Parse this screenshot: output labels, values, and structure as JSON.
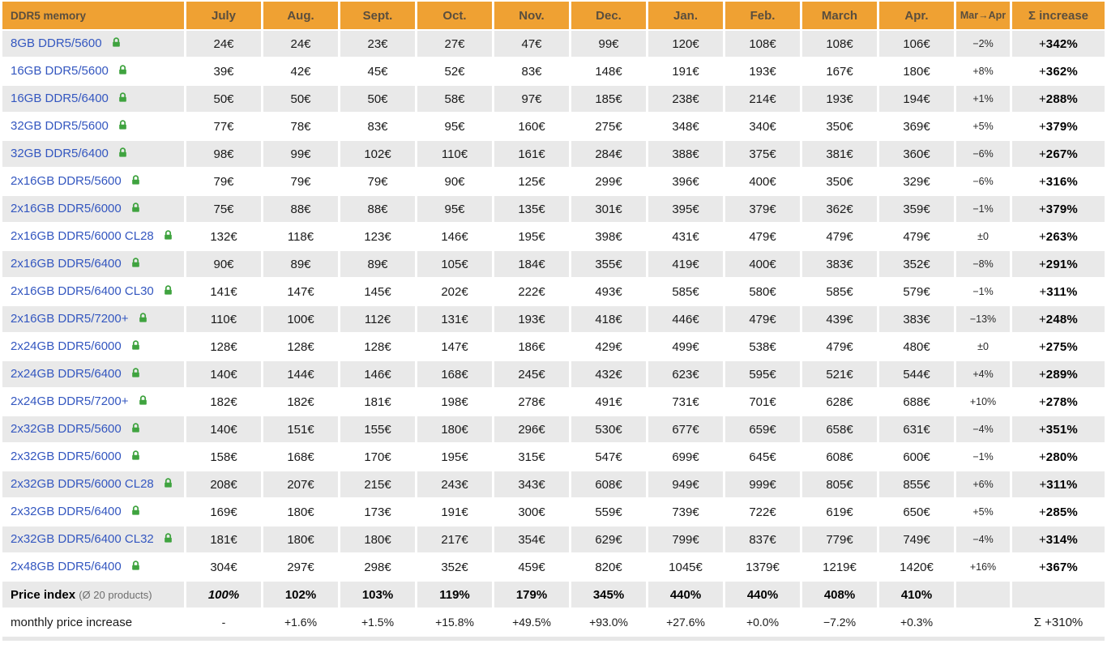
{
  "colors": {
    "header_bg": "#efa133",
    "header_text": "#5a4e3e",
    "row_alt_bg": "#e9e9e9",
    "link_blue": "#3457c0",
    "lock_green": "#3fa33f"
  },
  "table": {
    "title": "DDR5 memory",
    "months": [
      "July",
      "Aug.",
      "Sept.",
      "Oct.",
      "Nov.",
      "Dec.",
      "Jan.",
      "Feb.",
      "March",
      "Apr."
    ],
    "change_header": "Mar→Apr",
    "sum_header": "Σ increase",
    "rows": [
      {
        "name": "8GB DDR5/5600",
        "prices": [
          "24€",
          "24€",
          "23€",
          "27€",
          "47€",
          "99€",
          "120€",
          "108€",
          "108€",
          "106€"
        ],
        "change": "−2%",
        "sum_sign": "+",
        "sum_val": "342%"
      },
      {
        "name": "16GB DDR5/5600",
        "prices": [
          "39€",
          "42€",
          "45€",
          "52€",
          "83€",
          "148€",
          "191€",
          "193€",
          "167€",
          "180€"
        ],
        "change": "+8%",
        "sum_sign": "+",
        "sum_val": "362%"
      },
      {
        "name": "16GB DDR5/6400",
        "prices": [
          "50€",
          "50€",
          "50€",
          "58€",
          "97€",
          "185€",
          "238€",
          "214€",
          "193€",
          "194€"
        ],
        "change": "+1%",
        "sum_sign": "+",
        "sum_val": "288%"
      },
      {
        "name": "32GB DDR5/5600",
        "prices": [
          "77€",
          "78€",
          "83€",
          "95€",
          "160€",
          "275€",
          "348€",
          "340€",
          "350€",
          "369€"
        ],
        "change": "+5%",
        "sum_sign": "+",
        "sum_val": "379%"
      },
      {
        "name": "32GB DDR5/6400",
        "prices": [
          "98€",
          "99€",
          "102€",
          "110€",
          "161€",
          "284€",
          "388€",
          "375€",
          "381€",
          "360€"
        ],
        "change": "−6%",
        "sum_sign": "+",
        "sum_val": "267%"
      },
      {
        "name": "2x16GB DDR5/5600",
        "prices": [
          "79€",
          "79€",
          "79€",
          "90€",
          "125€",
          "299€",
          "396€",
          "400€",
          "350€",
          "329€"
        ],
        "change": "−6%",
        "sum_sign": "+",
        "sum_val": "316%"
      },
      {
        "name": "2x16GB DDR5/6000",
        "prices": [
          "75€",
          "88€",
          "88€",
          "95€",
          "135€",
          "301€",
          "395€",
          "379€",
          "362€",
          "359€"
        ],
        "change": "−1%",
        "sum_sign": "+",
        "sum_val": "379%"
      },
      {
        "name": "2x16GB DDR5/6000 CL28",
        "prices": [
          "132€",
          "118€",
          "123€",
          "146€",
          "195€",
          "398€",
          "431€",
          "479€",
          "479€",
          "479€"
        ],
        "change": "±0",
        "sum_sign": "+",
        "sum_val": "263%"
      },
      {
        "name": "2x16GB DDR5/6400",
        "prices": [
          "90€",
          "89€",
          "89€",
          "105€",
          "184€",
          "355€",
          "419€",
          "400€",
          "383€",
          "352€"
        ],
        "change": "−8%",
        "sum_sign": "+",
        "sum_val": "291%"
      },
      {
        "name": "2x16GB DDR5/6400 CL30",
        "prices": [
          "141€",
          "147€",
          "145€",
          "202€",
          "222€",
          "493€",
          "585€",
          "580€",
          "585€",
          "579€"
        ],
        "change": "−1%",
        "sum_sign": "+",
        "sum_val": "311%"
      },
      {
        "name": "2x16GB DDR5/7200+",
        "prices": [
          "110€",
          "100€",
          "112€",
          "131€",
          "193€",
          "418€",
          "446€",
          "479€",
          "439€",
          "383€"
        ],
        "change": "−13%",
        "sum_sign": "+",
        "sum_val": "248%"
      },
      {
        "name": "2x24GB DDR5/6000",
        "prices": [
          "128€",
          "128€",
          "128€",
          "147€",
          "186€",
          "429€",
          "499€",
          "538€",
          "479€",
          "480€"
        ],
        "change": "±0",
        "sum_sign": "+",
        "sum_val": "275%"
      },
      {
        "name": "2x24GB DDR5/6400",
        "prices": [
          "140€",
          "144€",
          "146€",
          "168€",
          "245€",
          "432€",
          "623€",
          "595€",
          "521€",
          "544€"
        ],
        "change": "+4%",
        "sum_sign": "+",
        "sum_val": "289%"
      },
      {
        "name": "2x24GB DDR5/7200+",
        "prices": [
          "182€",
          "182€",
          "181€",
          "198€",
          "278€",
          "491€",
          "731€",
          "701€",
          "628€",
          "688€"
        ],
        "change": "+10%",
        "sum_sign": "+",
        "sum_val": "278%"
      },
      {
        "name": "2x32GB DDR5/5600",
        "prices": [
          "140€",
          "151€",
          "155€",
          "180€",
          "296€",
          "530€",
          "677€",
          "659€",
          "658€",
          "631€"
        ],
        "change": "−4%",
        "sum_sign": "+",
        "sum_val": "351%"
      },
      {
        "name": "2x32GB DDR5/6000",
        "prices": [
          "158€",
          "168€",
          "170€",
          "195€",
          "315€",
          "547€",
          "699€",
          "645€",
          "608€",
          "600€"
        ],
        "change": "−1%",
        "sum_sign": "+",
        "sum_val": "280%"
      },
      {
        "name": "2x32GB DDR5/6000 CL28",
        "prices": [
          "208€",
          "207€",
          "215€",
          "243€",
          "343€",
          "608€",
          "949€",
          "999€",
          "805€",
          "855€"
        ],
        "change": "+6%",
        "sum_sign": "+",
        "sum_val": "311%"
      },
      {
        "name": "2x32GB DDR5/6400",
        "prices": [
          "169€",
          "180€",
          "173€",
          "191€",
          "300€",
          "559€",
          "739€",
          "722€",
          "619€",
          "650€"
        ],
        "change": "+5%",
        "sum_sign": "+",
        "sum_val": "285%"
      },
      {
        "name": "2x32GB DDR5/6400 CL32",
        "prices": [
          "181€",
          "180€",
          "180€",
          "217€",
          "354€",
          "629€",
          "799€",
          "837€",
          "779€",
          "749€"
        ],
        "change": "−4%",
        "sum_sign": "+",
        "sum_val": "314%"
      },
      {
        "name": "2x48GB DDR5/6400",
        "prices": [
          "304€",
          "297€",
          "298€",
          "352€",
          "459€",
          "820€",
          "1045€",
          "1379€",
          "1219€",
          "1420€"
        ],
        "change": "+16%",
        "sum_sign": "+",
        "sum_val": "367%"
      }
    ],
    "price_index": {
      "label": "Price index",
      "sublabel": "(Ø 20 products)",
      "values": [
        "100%",
        "102%",
        "103%",
        "119%",
        "179%",
        "345%",
        "440%",
        "440%",
        "408%",
        "410%"
      ]
    },
    "monthly": {
      "label": "monthly price increase",
      "values": [
        "-",
        "+1.6%",
        "+1.5%",
        "+15.8%",
        "+49.5%",
        "+93.0%",
        "+27.6%",
        "+0.0%",
        "−7.2%",
        "+0.3%"
      ],
      "sum": "Σ +310%"
    }
  },
  "chart_data": {
    "type": "table",
    "title": "DDR5 memory",
    "categories": [
      "July",
      "Aug.",
      "Sept.",
      "Oct.",
      "Nov.",
      "Dec.",
      "Jan.",
      "Feb.",
      "March",
      "Apr."
    ],
    "unit": "EUR",
    "series": [
      {
        "name": "8GB DDR5/5600",
        "values": [
          24,
          24,
          23,
          27,
          47,
          99,
          120,
          108,
          108,
          106
        ],
        "mar_apr_change_pct": -2,
        "total_increase_pct": 342
      },
      {
        "name": "16GB DDR5/5600",
        "values": [
          39,
          42,
          45,
          52,
          83,
          148,
          191,
          193,
          167,
          180
        ],
        "mar_apr_change_pct": 8,
        "total_increase_pct": 362
      },
      {
        "name": "16GB DDR5/6400",
        "values": [
          50,
          50,
          50,
          58,
          97,
          185,
          238,
          214,
          193,
          194
        ],
        "mar_apr_change_pct": 1,
        "total_increase_pct": 288
      },
      {
        "name": "32GB DDR5/5600",
        "values": [
          77,
          78,
          83,
          95,
          160,
          275,
          348,
          340,
          350,
          369
        ],
        "mar_apr_change_pct": 5,
        "total_increase_pct": 379
      },
      {
        "name": "32GB DDR5/6400",
        "values": [
          98,
          99,
          102,
          110,
          161,
          284,
          388,
          375,
          381,
          360
        ],
        "mar_apr_change_pct": -6,
        "total_increase_pct": 267
      },
      {
        "name": "2x16GB DDR5/5600",
        "values": [
          79,
          79,
          79,
          90,
          125,
          299,
          396,
          400,
          350,
          329
        ],
        "mar_apr_change_pct": -6,
        "total_increase_pct": 316
      },
      {
        "name": "2x16GB DDR5/6000",
        "values": [
          75,
          88,
          88,
          95,
          135,
          301,
          395,
          379,
          362,
          359
        ],
        "mar_apr_change_pct": -1,
        "total_increase_pct": 379
      },
      {
        "name": "2x16GB DDR5/6000 CL28",
        "values": [
          132,
          118,
          123,
          146,
          195,
          398,
          431,
          479,
          479,
          479
        ],
        "mar_apr_change_pct": 0,
        "total_increase_pct": 263
      },
      {
        "name": "2x16GB DDR5/6400",
        "values": [
          90,
          89,
          89,
          105,
          184,
          355,
          419,
          400,
          383,
          352
        ],
        "mar_apr_change_pct": -8,
        "total_increase_pct": 291
      },
      {
        "name": "2x16GB DDR5/6400 CL30",
        "values": [
          141,
          147,
          145,
          202,
          222,
          493,
          585,
          580,
          585,
          579
        ],
        "mar_apr_change_pct": -1,
        "total_increase_pct": 311
      },
      {
        "name": "2x16GB DDR5/7200+",
        "values": [
          110,
          100,
          112,
          131,
          193,
          418,
          446,
          479,
          439,
          383
        ],
        "mar_apr_change_pct": -13,
        "total_increase_pct": 248
      },
      {
        "name": "2x24GB DDR5/6000",
        "values": [
          128,
          128,
          128,
          147,
          186,
          429,
          499,
          538,
          479,
          480
        ],
        "mar_apr_change_pct": 0,
        "total_increase_pct": 275
      },
      {
        "name": "2x24GB DDR5/6400",
        "values": [
          140,
          144,
          146,
          168,
          245,
          432,
          623,
          595,
          521,
          544
        ],
        "mar_apr_change_pct": 4,
        "total_increase_pct": 289
      },
      {
        "name": "2x24GB DDR5/7200+",
        "values": [
          182,
          182,
          181,
          198,
          278,
          491,
          731,
          701,
          628,
          688
        ],
        "mar_apr_change_pct": 10,
        "total_increase_pct": 278
      },
      {
        "name": "2x32GB DDR5/5600",
        "values": [
          140,
          151,
          155,
          180,
          296,
          530,
          677,
          659,
          658,
          631
        ],
        "mar_apr_change_pct": -4,
        "total_increase_pct": 351
      },
      {
        "name": "2x32GB DDR5/6000",
        "values": [
          158,
          168,
          170,
          195,
          315,
          547,
          699,
          645,
          608,
          600
        ],
        "mar_apr_change_pct": -1,
        "total_increase_pct": 280
      },
      {
        "name": "2x32GB DDR5/6000 CL28",
        "values": [
          208,
          207,
          215,
          243,
          343,
          608,
          949,
          999,
          805,
          855
        ],
        "mar_apr_change_pct": 6,
        "total_increase_pct": 311
      },
      {
        "name": "2x32GB DDR5/6400",
        "values": [
          169,
          180,
          173,
          191,
          300,
          559,
          739,
          722,
          619,
          650
        ],
        "mar_apr_change_pct": 5,
        "total_increase_pct": 285
      },
      {
        "name": "2x32GB DDR5/6400 CL32",
        "values": [
          181,
          180,
          180,
          217,
          354,
          629,
          799,
          837,
          779,
          749
        ],
        "mar_apr_change_pct": -4,
        "total_increase_pct": 314
      },
      {
        "name": "2x48GB DDR5/6400",
        "values": [
          304,
          297,
          298,
          352,
          459,
          820,
          1045,
          1379,
          1219,
          1420
        ],
        "mar_apr_change_pct": 16,
        "total_increase_pct": 367
      }
    ],
    "price_index_pct": [
      100,
      102,
      103,
      119,
      179,
      345,
      440,
      440,
      408,
      410
    ],
    "monthly_increase_pct": [
      null,
      1.6,
      1.5,
      15.8,
      49.5,
      93.0,
      27.6,
      0.0,
      -7.2,
      0.3
    ],
    "total_index_increase_pct": 310
  }
}
